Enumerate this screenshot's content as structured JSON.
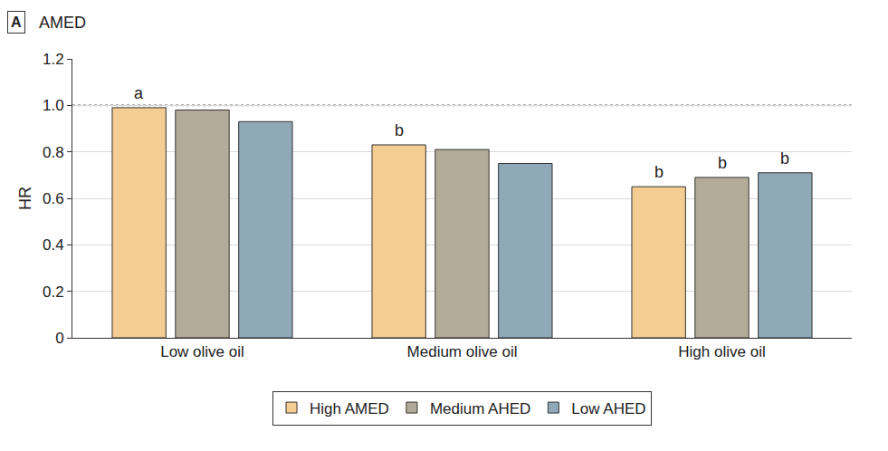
{
  "chart_data": {
    "type": "bar",
    "panel": "A",
    "title": "AMED",
    "y_label": "HR",
    "categories": [
      "Low olive oil",
      "Medium olive oil",
      "High olive oil"
    ],
    "series": [
      {
        "name": "High AMED",
        "color": "#f3cd91",
        "values": [
          0.99,
          0.83,
          0.65
        ]
      },
      {
        "name": "Medium AHED",
        "color": "#b2ab9a",
        "values": [
          0.98,
          0.81,
          0.69
        ]
      },
      {
        "name": "Low AHED",
        "color": "#8fa9b8",
        "values": [
          0.93,
          0.75,
          0.71
        ]
      }
    ],
    "annotations": [
      {
        "text": "a",
        "category": "Low olive oil",
        "series": "High AMED"
      },
      {
        "text": "b",
        "category": "Medium olive oil",
        "series": "High AMED"
      },
      {
        "text": "b",
        "category": "High olive oil",
        "series": "High AMED"
      },
      {
        "text": "b",
        "category": "High olive oil",
        "series": "Medium AHED"
      },
      {
        "text": "b",
        "category": "High olive oil",
        "series": "Low AHED"
      }
    ],
    "reference_line": 1,
    "ylim": [
      0,
      1.2
    ],
    "yticks": [
      0,
      0.2,
      0.4,
      0.6,
      0.8,
      {
        "value": 1,
        "label": "1.0"
      },
      1.2
    ],
    "grid": true,
    "legend": "bottom"
  }
}
